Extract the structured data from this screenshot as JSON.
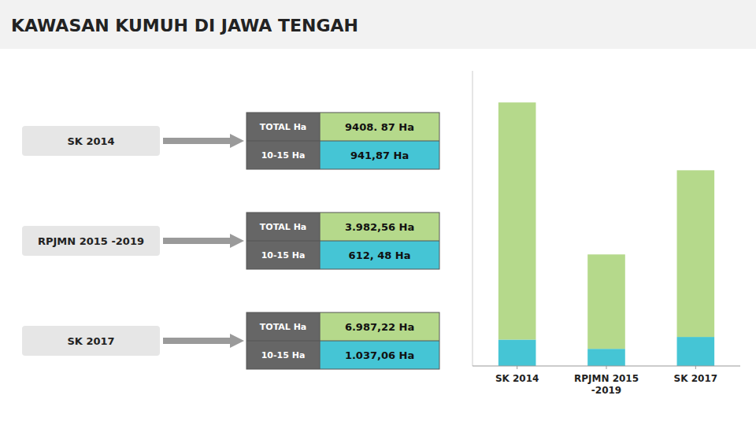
{
  "chart_data": {
    "type": "bar",
    "title": "KAWASAN KUMUH DI JAWA TENGAH",
    "stacked": true,
    "grid": false,
    "tick_labels": "x",
    "categories": [
      "SK 2014",
      "RPJMN 2015\n-2019",
      "SK 2017"
    ],
    "series": [
      {
        "color": "#45C5D5",
        "values": [
          941.87,
          612.48,
          1037.06
        ]
      },
      {
        "color": "#B5D98B",
        "values": [
          8467.0,
          3370.08,
          5950.16
        ]
      }
    ],
    "ylim": [
      0,
      10537.9344
    ],
    "table": {
      "row_headers": [
        "TOTAL Ha",
        "10-15 Ha"
      ],
      "rows": [
        {
          "label": "SK 2014",
          "total_label": "9408. 87 Ha",
          "sub_label": "941,87 Ha"
        },
        {
          "label": "RPJMN 2015 -2019",
          "total_label": "3.982,56 Ha",
          "sub_label": "612, 48 Ha"
        },
        {
          "label": "SK 2017",
          "total_label": "6.987,22 Ha",
          "sub_label": "1.037,06 Ha"
        }
      ]
    }
  }
}
